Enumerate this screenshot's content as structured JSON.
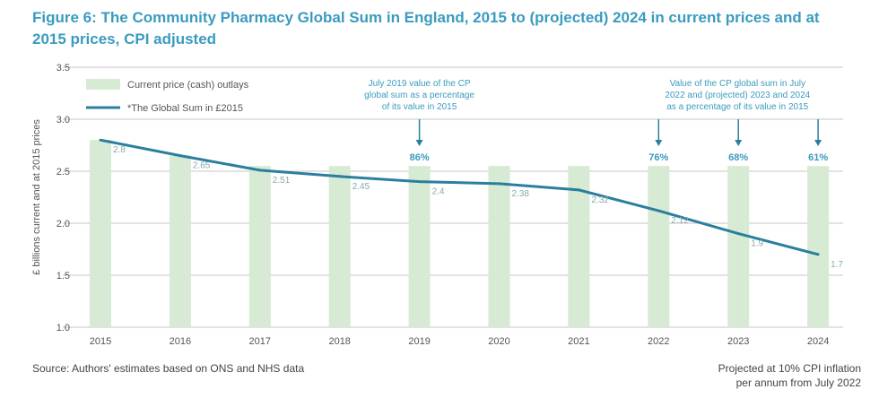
{
  "title": "Figure 6: The Community Pharmacy Global Sum in England, 2015 to (projected) 2024 in current prices and at 2015 prices, CPI adjusted",
  "source": "Source: Authors' estimates based on ONS and NHS data",
  "note_line1": "Projected at 10% CPI inflation",
  "note_line2": "per annum from July 2022",
  "colors": {
    "bar": "#d6ead4",
    "line": "#2b7f9e",
    "text": "#3a9bbf"
  },
  "chart_data": {
    "type": "bar",
    "title": "Figure 6: The Community Pharmacy Global Sum in England, 2015 to (projected) 2024 in current prices and at 2015 prices, CPI adjusted",
    "ylabel": "£ billions current and at 2015 prices",
    "ylim": [
      1.0,
      3.5
    ],
    "yticks": [
      "1.0",
      "1.5",
      "2.0",
      "2.5",
      "3.0",
      "3.5"
    ],
    "categories": [
      "2015",
      "2016",
      "2017",
      "2018",
      "2019",
      "2020",
      "2021",
      "2022",
      "2023",
      "2024"
    ],
    "series": [
      {
        "name": "Current price (cash) outlays",
        "type": "bar",
        "values": [
          2.8,
          2.65,
          2.55,
          2.55,
          2.55,
          2.55,
          2.55,
          2.55,
          2.55,
          2.55
        ]
      },
      {
        "name": "*The Global Sum in £2015",
        "type": "line",
        "values": [
          2.8,
          2.65,
          2.51,
          2.45,
          2.4,
          2.38,
          2.32,
          2.12,
          1.9,
          1.7
        ],
        "labels": [
          "2.8",
          "2.65",
          "2.51",
          "2.45",
          "2.4",
          "2.38",
          "2.32",
          "2.12",
          "1.9",
          "1.7"
        ]
      }
    ],
    "annotations": [
      {
        "text": [
          "July 2019 value of the CP",
          "global sum as a percentage",
          "of its value in 2015"
        ],
        "targets": [
          {
            "category": "2019",
            "label": "86%"
          }
        ]
      },
      {
        "text": [
          "Value of the CP global sum in July",
          "2022 and (projected) 2023 and 2024",
          "as a percentage of its value in 2015"
        ],
        "targets": [
          {
            "category": "2022",
            "label": "76%"
          },
          {
            "category": "2023",
            "label": "68%"
          },
          {
            "category": "2024",
            "label": "61%"
          }
        ]
      }
    ],
    "legend": "top-left",
    "grid": true
  }
}
